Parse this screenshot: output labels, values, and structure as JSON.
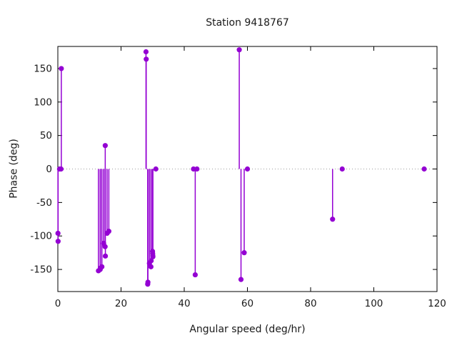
{
  "chart": {
    "title": "Station 9418767",
    "xlabel": "Angular speed (deg/hr)",
    "ylabel": "Phase (deg)"
  },
  "chart_data": {
    "type": "scatter",
    "style": "impulses-with-points",
    "title": "Station 9418767",
    "xlabel": "Angular speed (deg/hr)",
    "ylabel": "Phase (deg)",
    "xlim": [
      0,
      120
    ],
    "ylim": [
      -183,
      183
    ],
    "x_ticks": [
      0,
      20,
      40,
      60,
      80,
      100,
      120
    ],
    "y_ticks": [
      -150,
      -100,
      -50,
      0,
      50,
      100,
      150
    ],
    "grid": "zero-line-only",
    "zero_line_y": 0,
    "legend": "none",
    "accent_color": "#9400d3",
    "axis_color": "#000000",
    "text_color": "#1a1a1a",
    "zero_line_color": "#9e9e9e",
    "points": [
      [
        0.04,
        -96
      ],
      [
        0.08,
        -108
      ],
      [
        0.54,
        0
      ],
      [
        1.02,
        0
      ],
      [
        1.1,
        150
      ],
      [
        12.85,
        -152
      ],
      [
        13.4,
        -150
      ],
      [
        13.47,
        -148
      ],
      [
        13.94,
        -146
      ],
      [
        14.5,
        -111
      ],
      [
        14.96,
        -116
      ],
      [
        15.0,
        35
      ],
      [
        15.04,
        -130
      ],
      [
        15.59,
        -96
      ],
      [
        16.14,
        -93
      ],
      [
        27.9,
        175
      ],
      [
        27.97,
        164
      ],
      [
        28.44,
        -172
      ],
      [
        28.51,
        -169
      ],
      [
        28.98,
        -141
      ],
      [
        29.46,
        -146
      ],
      [
        29.53,
        -137
      ],
      [
        29.96,
        -123
      ],
      [
        30.0,
        -126
      ],
      [
        30.04,
        -129
      ],
      [
        30.08,
        -131
      ],
      [
        31.02,
        0
      ],
      [
        42.93,
        0
      ],
      [
        43.48,
        -158
      ],
      [
        44.03,
        0
      ],
      [
        57.42,
        178
      ],
      [
        57.97,
        -165
      ],
      [
        58.98,
        -125
      ],
      [
        60.0,
        0
      ],
      [
        86.95,
        -75
      ],
      [
        90.0,
        0
      ],
      [
        115.94,
        0
      ]
    ]
  }
}
